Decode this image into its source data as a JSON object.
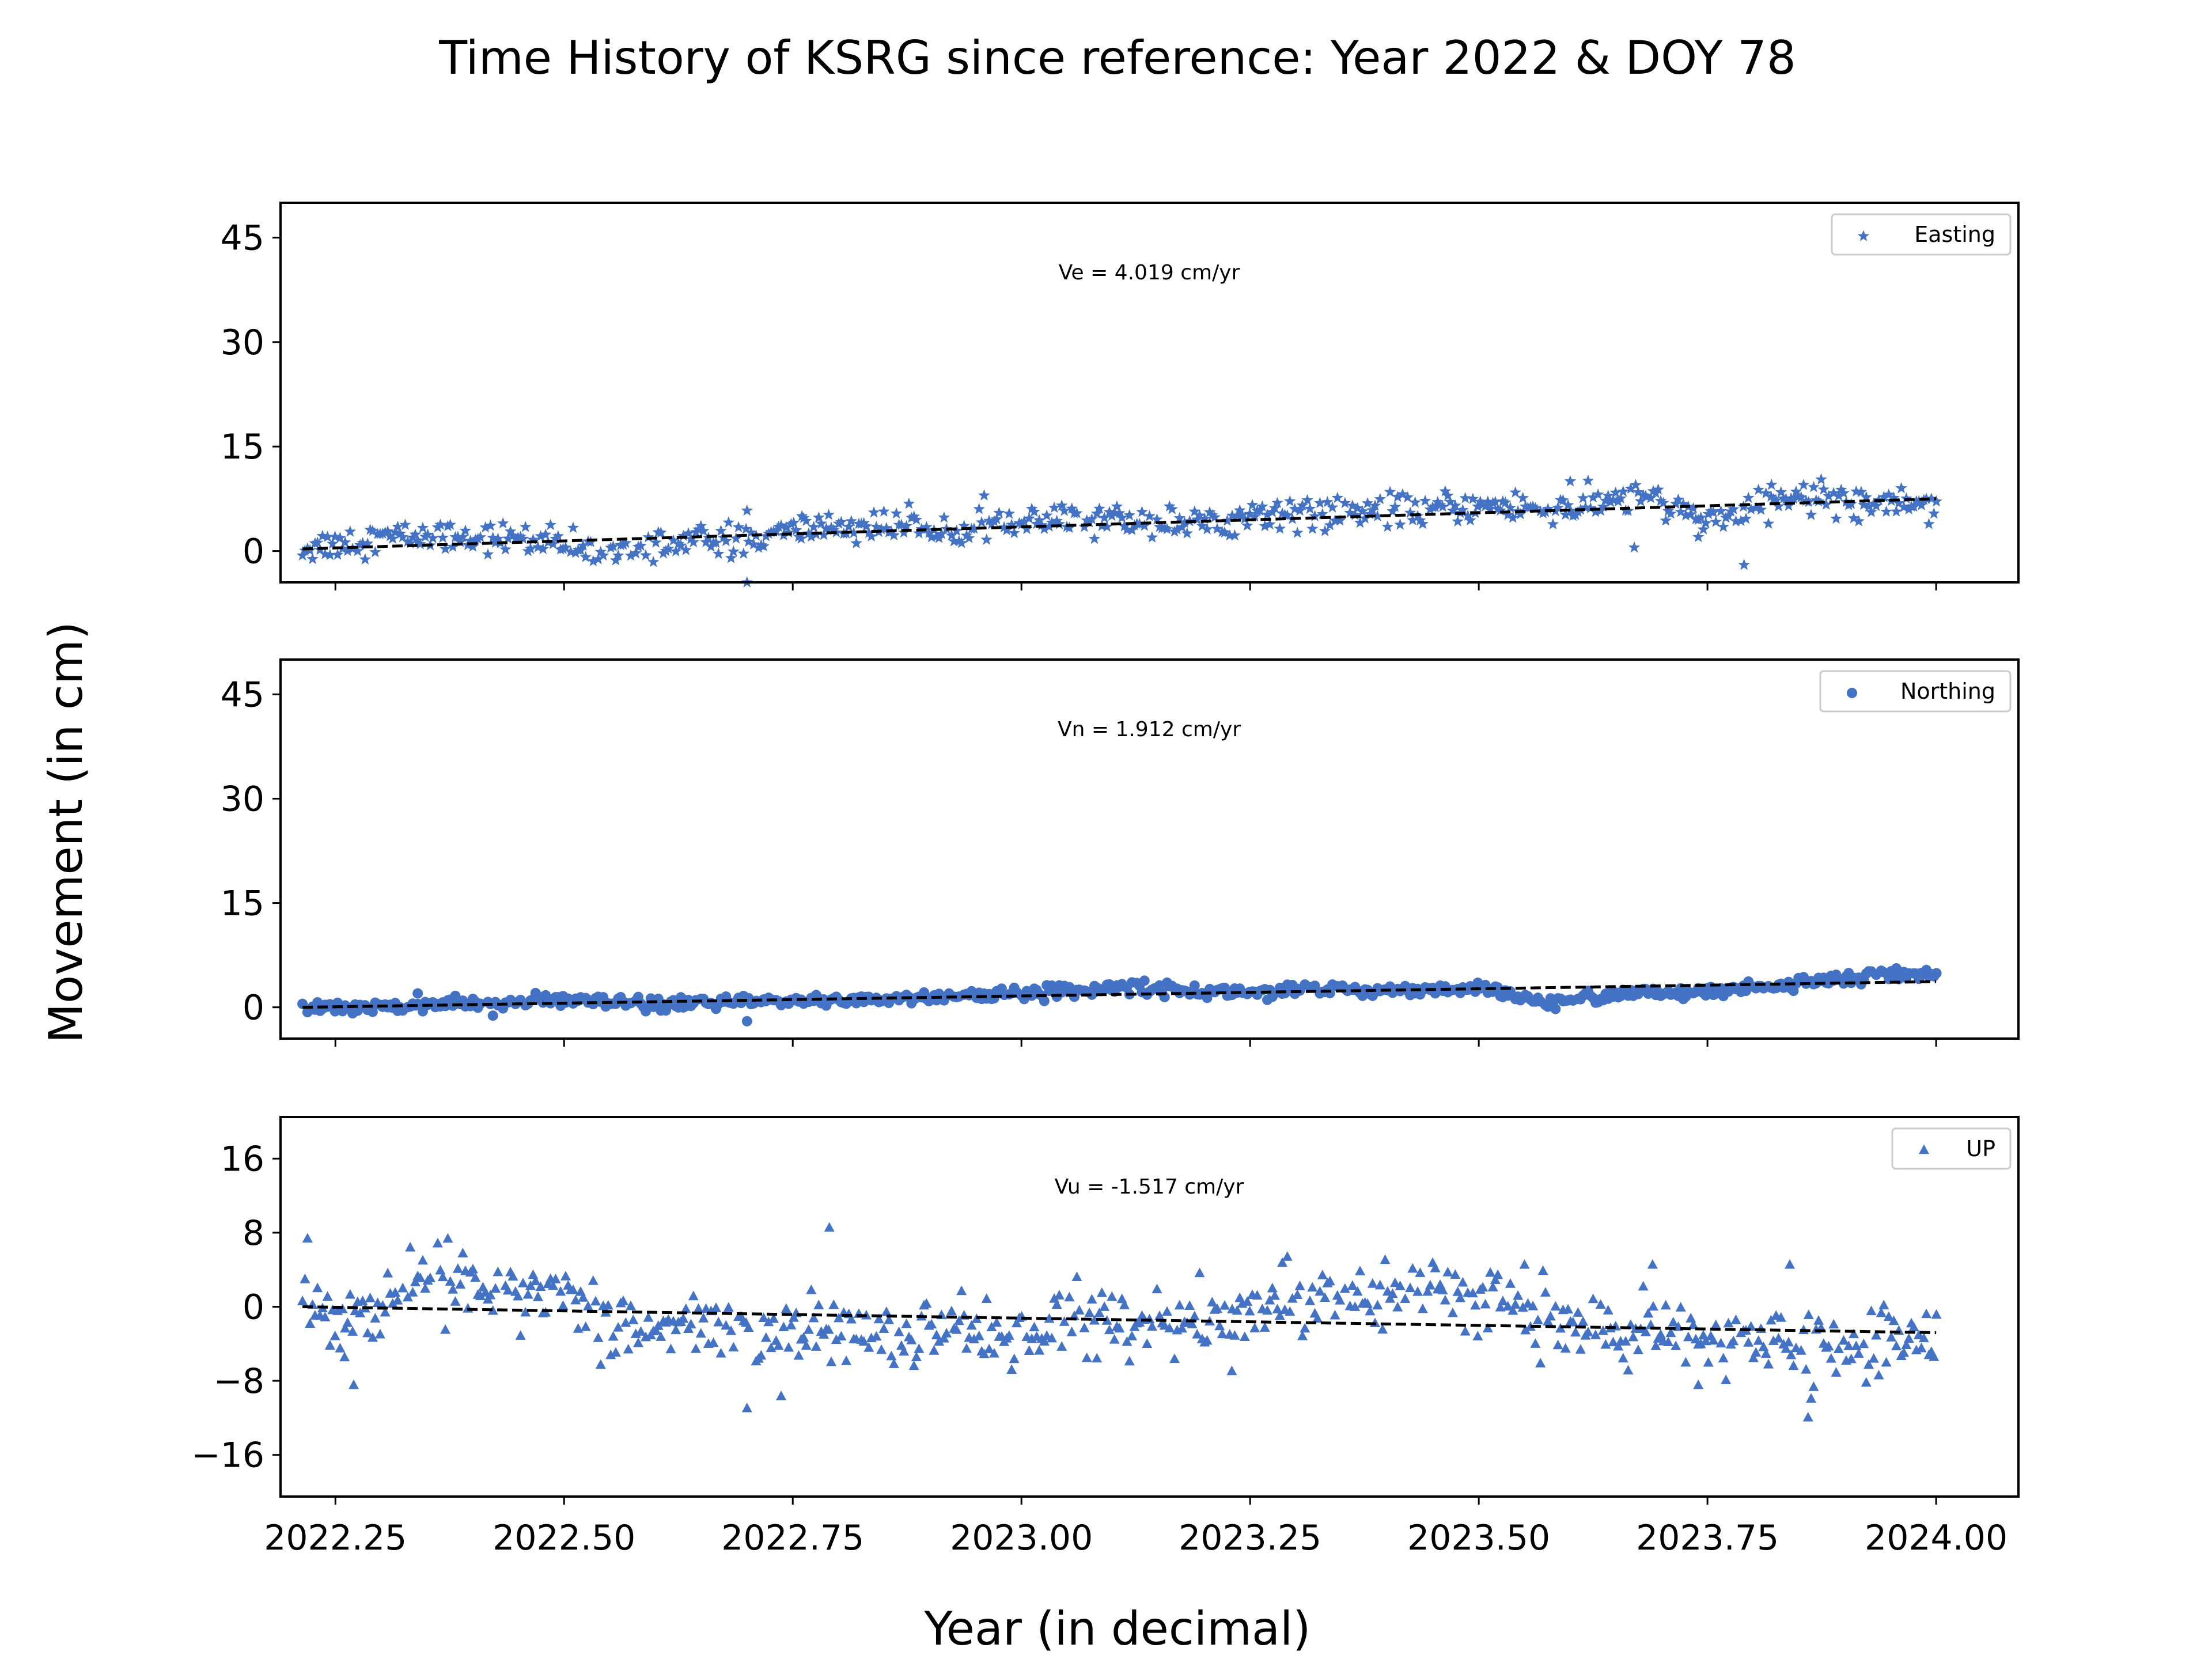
{
  "chart_data": {
    "type": "scatter",
    "title": "Time History of KSRG since reference: Year 2022 & DOY 78",
    "xlabel": "Year (in decimal)",
    "ylabel": "Movement (in cm)",
    "xlim": [
      2022.19,
      2024.09
    ],
    "xticks": [
      2022.25,
      2022.5,
      2022.75,
      2023.0,
      2023.25,
      2023.5,
      2023.75,
      2024.0
    ],
    "xtick_labels": [
      "2022.25",
      "2022.50",
      "2022.75",
      "2023.00",
      "2023.25",
      "2023.50",
      "2023.75",
      "2024.00"
    ],
    "x_start": 2022.214,
    "x_end": 2024.0,
    "marker_color": "#4472c4",
    "trend_color": "#000000",
    "panels": [
      {
        "name": "Easting",
        "legend": "Easting",
        "marker": "star",
        "annotation": "Ve =  4.019 cm/yr",
        "ylim": [
          -4.5,
          50
        ],
        "yticks": [
          0,
          15,
          30,
          45
        ],
        "ytick_labels": [
          "0",
          "15",
          "30",
          "45"
        ],
        "trend": [
          0.3,
          7.5
        ],
        "anchors": [
          [
            2022.22,
            0.5
          ],
          [
            2022.3,
            2.0
          ],
          [
            2022.38,
            2.2
          ],
          [
            2022.45,
            1.8
          ],
          [
            2022.55,
            -0.5
          ],
          [
            2022.62,
            1.5
          ],
          [
            2022.7,
            1.5
          ],
          [
            2022.78,
            3.5
          ],
          [
            2022.9,
            3.5
          ],
          [
            2023.0,
            4.0
          ],
          [
            2023.1,
            4.5
          ],
          [
            2023.2,
            4.0
          ],
          [
            2023.27,
            5.5
          ],
          [
            2023.4,
            5.5
          ],
          [
            2023.5,
            6.5
          ],
          [
            2023.6,
            6.0
          ],
          [
            2023.68,
            8.0
          ],
          [
            2023.75,
            4.5
          ],
          [
            2023.85,
            8.0
          ],
          [
            2023.92,
            7.0
          ],
          [
            2024.0,
            7.0
          ]
        ],
        "noise": 1.1,
        "outliers": [
          [
            2022.7,
            -4.5
          ],
          [
            2022.7,
            5.8
          ],
          [
            2022.76,
            5.0
          ],
          [
            2023.6,
            10.0
          ],
          [
            2023.67,
            0.5
          ],
          [
            2023.79,
            -2.0
          ],
          [
            2023.74,
            2.0
          ],
          [
            2023.82,
            9.5
          ]
        ],
        "points": []
      },
      {
        "name": "Northing",
        "legend": "Northing",
        "marker": "circle",
        "annotation": "Vn =  1.912 cm/yr",
        "ylim": [
          -4.5,
          50
        ],
        "yticks": [
          0,
          15,
          30,
          45
        ],
        "ytick_labels": [
          "0",
          "15",
          "30",
          "45"
        ],
        "trend": [
          0.0,
          3.7
        ],
        "anchors": [
          [
            2022.22,
            0.0
          ],
          [
            2022.4,
            0.5
          ],
          [
            2022.5,
            1.0
          ],
          [
            2022.6,
            0.3
          ],
          [
            2022.7,
            0.8
          ],
          [
            2022.85,
            1.2
          ],
          [
            2023.0,
            2.0
          ],
          [
            2023.12,
            3.0
          ],
          [
            2023.2,
            2.2
          ],
          [
            2023.4,
            2.5
          ],
          [
            2023.5,
            2.8
          ],
          [
            2023.57,
            0.5
          ],
          [
            2023.65,
            2.0
          ],
          [
            2023.75,
            2.0
          ],
          [
            2023.88,
            4.0
          ],
          [
            2024.0,
            5.0
          ]
        ],
        "noise": 0.45,
        "outliers": [
          [
            2022.7,
            -2.0
          ],
          [
            2022.34,
            2.0
          ]
        ],
        "points": []
      },
      {
        "name": "UP",
        "legend": "UP",
        "marker": "triangle",
        "annotation": "Vu = -1.517 cm/yr",
        "ylim": [
          -20.5,
          20.5
        ],
        "yticks": [
          -16,
          -8,
          0,
          8,
          16
        ],
        "ytick_labels": [
          "−16",
          "−8",
          "0",
          "8",
          "16"
        ],
        "trend": [
          0.0,
          -2.8
        ],
        "anchors": [
          [
            2022.22,
            1.0
          ],
          [
            2022.27,
            -2.0
          ],
          [
            2022.34,
            3.0
          ],
          [
            2022.45,
            2.5
          ],
          [
            2022.5,
            2.0
          ],
          [
            2022.55,
            -2.5
          ],
          [
            2022.65,
            -2.5
          ],
          [
            2022.75,
            -3.0
          ],
          [
            2022.9,
            -2.5
          ],
          [
            2023.0,
            -3.0
          ],
          [
            2023.1,
            -1.0
          ],
          [
            2023.2,
            -2.5
          ],
          [
            2023.3,
            1.0
          ],
          [
            2023.4,
            2.0
          ],
          [
            2023.5,
            1.5
          ],
          [
            2023.55,
            -1.0
          ],
          [
            2023.65,
            -3.0
          ],
          [
            2023.8,
            -4.0
          ],
          [
            2023.9,
            -4.5
          ],
          [
            2024.0,
            -3.0
          ]
        ],
        "noise": 1.8,
        "outliers": [
          [
            2022.26,
            -5.5
          ],
          [
            2022.27,
            -8.5
          ],
          [
            2022.79,
            8.5
          ],
          [
            2022.7,
            -11.0
          ],
          [
            2023.23,
            -7.0
          ],
          [
            2023.84,
            4.5
          ],
          [
            2023.86,
            -12.0
          ],
          [
            2023.74,
            -8.5
          ],
          [
            2023.69,
            4.5
          ],
          [
            2023.55,
            4.5
          ]
        ],
        "points": []
      }
    ]
  }
}
